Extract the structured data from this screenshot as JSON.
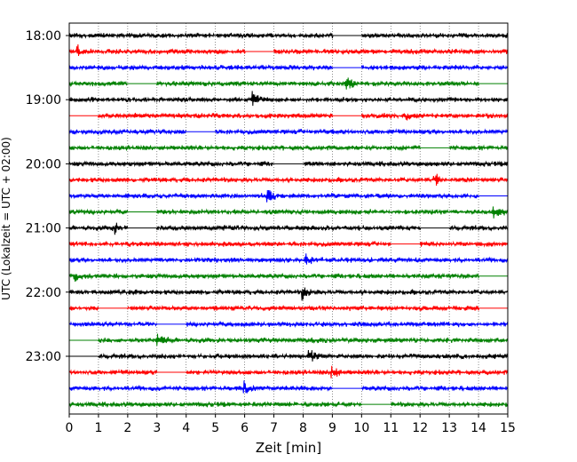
{
  "chart_data": {
    "type": "line",
    "title": "",
    "xlabel": "Zeit  [min]",
    "ylabel": "UTC (Lokalzeit = UTC + 02:00)",
    "xlim": [
      0,
      15
    ],
    "x_ticks": [
      0,
      1,
      2,
      3,
      4,
      5,
      6,
      7,
      8,
      9,
      10,
      11,
      12,
      13,
      14,
      15
    ],
    "x_tick_labels": [
      "0",
      "1",
      "2",
      "3",
      "4",
      "5",
      "6",
      "7",
      "8",
      "9",
      "10",
      "11",
      "12",
      "13",
      "14",
      "15"
    ],
    "y_tick_labels": [
      "18:00",
      "19:00",
      "20:00",
      "21:00",
      "22:00",
      "23:00"
    ],
    "trace_interval_minutes": 15,
    "first_trace_start": "18:00",
    "trace_count": 24,
    "trace_colors": [
      "#000000",
      "#ff0000",
      "#0000ff",
      "#008000"
    ],
    "grid": "vertical dotted",
    "series": [
      {
        "start": "18:00",
        "events_min": [],
        "gaps_min": [
          [
            9.0,
            10.0
          ]
        ]
      },
      {
        "start": "18:15",
        "events_min": [
          0.3
        ],
        "gaps_min": [
          [
            6.0,
            7.0
          ]
        ]
      },
      {
        "start": "18:30",
        "events_min": [],
        "gaps_min": [
          [
            9.0,
            10.0
          ]
        ]
      },
      {
        "start": "18:45",
        "events_min": [
          9.5
        ],
        "gaps_min": [
          [
            2.0,
            3.0
          ],
          [
            14.0,
            15.0
          ]
        ]
      },
      {
        "start": "19:00",
        "events_min": [
          6.3
        ],
        "gaps_min": []
      },
      {
        "start": "19:15",
        "events_min": [
          11.5
        ],
        "gaps_min": [
          [
            0.0,
            1.0
          ],
          [
            9.0,
            10.0
          ]
        ]
      },
      {
        "start": "19:30",
        "events_min": [],
        "gaps_min": [
          [
            4.0,
            5.0
          ]
        ]
      },
      {
        "start": "19:45",
        "events_min": [],
        "gaps_min": [
          [
            12.0,
            13.0
          ]
        ]
      },
      {
        "start": "20:00",
        "events_min": [],
        "gaps_min": [
          [
            7.0,
            8.0
          ]
        ]
      },
      {
        "start": "20:15",
        "events_min": [
          12.5
        ],
        "gaps_min": []
      },
      {
        "start": "20:30",
        "events_min": [
          6.8
        ],
        "gaps_min": [
          [
            14.0,
            15.0
          ]
        ]
      },
      {
        "start": "20:45",
        "events_min": [
          14.5
        ],
        "gaps_min": [
          [
            2.0,
            3.0
          ]
        ]
      },
      {
        "start": "21:00",
        "events_min": [
          1.5
        ],
        "gaps_min": [
          [
            2.0,
            3.0
          ],
          [
            12.0,
            13.0
          ]
        ]
      },
      {
        "start": "21:15",
        "events_min": [],
        "gaps_min": [
          [
            11.0,
            12.0
          ]
        ]
      },
      {
        "start": "21:30",
        "events_min": [
          8.1
        ],
        "gaps_min": []
      },
      {
        "start": "21:45",
        "events_min": [
          0.2
        ],
        "gaps_min": [
          [
            14.0,
            15.0
          ]
        ]
      },
      {
        "start": "22:00",
        "events_min": [
          8.0
        ],
        "gaps_min": []
      },
      {
        "start": "22:15",
        "events_min": [],
        "gaps_min": [
          [
            1.0,
            2.0
          ],
          [
            14.0,
            15.0
          ]
        ]
      },
      {
        "start": "22:30",
        "events_min": [],
        "gaps_min": [
          [
            3.0,
            4.0
          ]
        ]
      },
      {
        "start": "22:45",
        "events_min": [
          3.0
        ],
        "gaps_min": [
          [
            0.0,
            1.0
          ]
        ]
      },
      {
        "start": "23:00",
        "events_min": [
          8.2
        ],
        "gaps_min": [
          [
            0.0,
            1.0
          ]
        ]
      },
      {
        "start": "23:15",
        "events_min": [
          9.0
        ],
        "gaps_min": [
          [
            3.0,
            4.0
          ]
        ]
      },
      {
        "start": "23:30",
        "events_min": [
          6.0
        ],
        "gaps_min": [
          [
            9.0,
            10.0
          ]
        ]
      },
      {
        "start": "23:45",
        "events_min": [],
        "gaps_min": [
          [
            10.0,
            11.0
          ]
        ]
      }
    ]
  }
}
